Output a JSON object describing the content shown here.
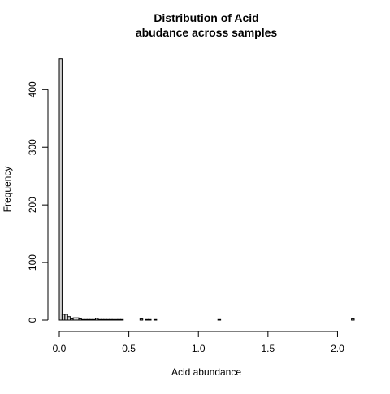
{
  "chart_data": {
    "type": "bar",
    "title": "Distribution of Acid\nabudance across samples",
    "title_lines": [
      "Distribution of Acid",
      "abudance across samples"
    ],
    "xlabel": "Acid abundance",
    "ylabel": "Frequency",
    "xlim": [
      0,
      2.12
    ],
    "ylim": [
      0,
      454
    ],
    "x_ticks": [
      0.0,
      0.5,
      1.0,
      1.5,
      2.0
    ],
    "x_tick_labels": [
      "0.0",
      "0.5",
      "1.0",
      "1.5",
      "2.0"
    ],
    "y_ticks": [
      0,
      100,
      200,
      300,
      400
    ],
    "y_tick_labels": [
      "0",
      "100",
      "200",
      "300",
      "400"
    ],
    "bin_width": 0.02,
    "bins": [
      {
        "x0": 0.0,
        "x1": 0.02,
        "count": 453
      },
      {
        "x0": 0.02,
        "x1": 0.04,
        "count": 10
      },
      {
        "x0": 0.04,
        "x1": 0.06,
        "count": 10
      },
      {
        "x0": 0.06,
        "x1": 0.08,
        "count": 6
      },
      {
        "x0": 0.08,
        "x1": 0.1,
        "count": 2
      },
      {
        "x0": 0.1,
        "x1": 0.12,
        "count": 4
      },
      {
        "x0": 0.12,
        "x1": 0.14,
        "count": 4
      },
      {
        "x0": 0.14,
        "x1": 0.16,
        "count": 2
      },
      {
        "x0": 0.16,
        "x1": 0.18,
        "count": 1
      },
      {
        "x0": 0.18,
        "x1": 0.2,
        "count": 1
      },
      {
        "x0": 0.2,
        "x1": 0.22,
        "count": 1
      },
      {
        "x0": 0.22,
        "x1": 0.24,
        "count": 1
      },
      {
        "x0": 0.24,
        "x1": 0.26,
        "count": 1
      },
      {
        "x0": 0.26,
        "x1": 0.28,
        "count": 3
      },
      {
        "x0": 0.28,
        "x1": 0.3,
        "count": 1
      },
      {
        "x0": 0.3,
        "x1": 0.32,
        "count": 1
      },
      {
        "x0": 0.32,
        "x1": 0.34,
        "count": 1
      },
      {
        "x0": 0.34,
        "x1": 0.36,
        "count": 1
      },
      {
        "x0": 0.36,
        "x1": 0.38,
        "count": 1
      },
      {
        "x0": 0.38,
        "x1": 0.4,
        "count": 1
      },
      {
        "x0": 0.4,
        "x1": 0.42,
        "count": 1
      },
      {
        "x0": 0.42,
        "x1": 0.44,
        "count": 1
      },
      {
        "x0": 0.44,
        "x1": 0.46,
        "count": 1
      },
      {
        "x0": 0.58,
        "x1": 0.6,
        "count": 2
      },
      {
        "x0": 0.62,
        "x1": 0.64,
        "count": 1
      },
      {
        "x0": 0.64,
        "x1": 0.66,
        "count": 1
      },
      {
        "x0": 0.68,
        "x1": 0.7,
        "count": 1
      },
      {
        "x0": 1.14,
        "x1": 1.16,
        "count": 1
      },
      {
        "x0": 2.1,
        "x1": 2.12,
        "count": 2
      }
    ],
    "bar_fill": "#d3d3d3",
    "bar_stroke": "#000000",
    "grid": false,
    "legend": "none"
  }
}
